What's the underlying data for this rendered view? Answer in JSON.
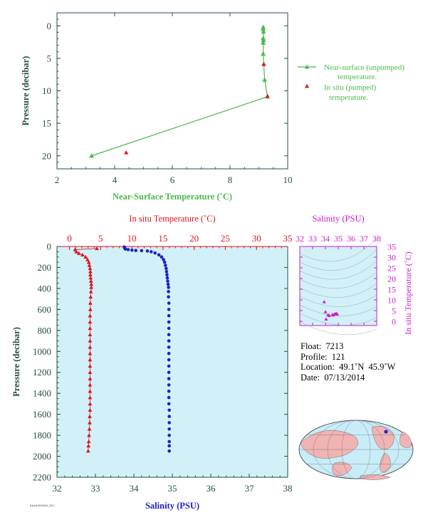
{
  "colors": {
    "green": "#4cb84c",
    "red": "#e0141e",
    "blue": "#1f1fc8",
    "magenta": "#c81ec8",
    "axis_dark": "#24503c",
    "plot_bg": "#d2f0f8",
    "land": "#f0b4b4",
    "ocean": "#c8ecf8"
  },
  "chart_data": [
    {
      "type": "scatter",
      "xlabel": "Near-Surface Temperature (˚C)",
      "ylabel": "Pressure (decibar)",
      "xlim": [
        2,
        10
      ],
      "ylim": [
        22,
        -2
      ],
      "xticks": [
        2,
        4,
        6,
        8,
        10
      ],
      "yticks": [
        0,
        5,
        10,
        15,
        20
      ],
      "legend_position": "right",
      "series": [
        {
          "name": "Near-surface (unpumped) temperature.",
          "marker": "triangle",
          "connected": true,
          "points": [
            [
              9.15,
              0.2
            ],
            [
              9.15,
              0.5
            ],
            [
              9.16,
              0.9
            ],
            [
              9.15,
              1.9
            ],
            [
              9.16,
              2.2
            ],
            [
              9.15,
              2.6
            ],
            [
              9.15,
              4.3
            ],
            [
              9.17,
              5.9
            ],
            [
              9.2,
              8.3
            ],
            [
              9.3,
              10.9
            ],
            [
              3.2,
              20.0
            ]
          ]
        },
        {
          "name": "In situ (pumped) temperature.",
          "marker": "triangle",
          "connected": false,
          "points": [
            [
              9.17,
              5.9
            ],
            [
              9.3,
              10.8
            ],
            [
              4.4,
              19.5
            ]
          ]
        }
      ]
    },
    {
      "type": "scatter",
      "title": "In situ Temperature (˚C)",
      "xlabel": "Salinity (PSU)",
      "ylabel": "Pressure (decibar)",
      "temp_lim": [
        -2,
        35
      ],
      "temp_ticks": [
        0,
        5,
        10,
        15,
        20,
        25,
        30,
        35
      ],
      "sal_lim": [
        32,
        38
      ],
      "sal_ticks": [
        32,
        33,
        34,
        35,
        36,
        37,
        38
      ],
      "ylim": [
        2200,
        0
      ],
      "yticks": [
        0,
        200,
        400,
        600,
        800,
        1000,
        1200,
        1400,
        1600,
        1800,
        2000,
        2200
      ],
      "series": [
        {
          "name": "In situ Temperature",
          "axis": "temperature",
          "marker": "triangle",
          "points": [
            [
              4.4,
              19.5
            ],
            [
              0.9,
              30
            ],
            [
              1.1,
              50
            ],
            [
              1.5,
              65
            ],
            [
              2.1,
              80
            ],
            [
              2.6,
              100
            ],
            [
              2.9,
              125
            ],
            [
              3.1,
              150
            ],
            [
              3.2,
              180
            ],
            [
              3.3,
              210
            ],
            [
              3.35,
              240
            ],
            [
              3.35,
              270
            ],
            [
              3.4,
              300
            ],
            [
              3.45,
              330
            ],
            [
              3.5,
              360
            ],
            [
              3.5,
              390
            ],
            [
              3.45,
              430
            ],
            [
              3.4,
              480
            ],
            [
              3.35,
              540
            ],
            [
              3.35,
              600
            ],
            [
              3.3,
              660
            ],
            [
              3.3,
              720
            ],
            [
              3.3,
              780
            ],
            [
              3.3,
              840
            ],
            [
              3.3,
              900
            ],
            [
              3.3,
              960
            ],
            [
              3.3,
              1020
            ],
            [
              3.3,
              1080
            ],
            [
              3.3,
              1140
            ],
            [
              3.3,
              1200
            ],
            [
              3.3,
              1260
            ],
            [
              3.3,
              1320
            ],
            [
              3.3,
              1380
            ],
            [
              3.3,
              1440
            ],
            [
              3.3,
              1500
            ],
            [
              3.3,
              1560
            ],
            [
              3.25,
              1620
            ],
            [
              3.25,
              1680
            ],
            [
              3.2,
              1740
            ],
            [
              3.15,
              1800
            ],
            [
              3.1,
              1860
            ],
            [
              3.05,
              1900
            ],
            [
              3.0,
              1950
            ]
          ]
        },
        {
          "name": "Salinity",
          "axis": "salinity",
          "marker": "circle",
          "points": [
            [
              33.75,
              5
            ],
            [
              33.76,
              15
            ],
            [
              33.78,
              25
            ],
            [
              33.85,
              30
            ],
            [
              33.95,
              35
            ],
            [
              34.05,
              38
            ],
            [
              34.2,
              40
            ],
            [
              34.35,
              43
            ],
            [
              34.45,
              50
            ],
            [
              34.55,
              62
            ],
            [
              34.65,
              80
            ],
            [
              34.72,
              100
            ],
            [
              34.77,
              125
            ],
            [
              34.8,
              150
            ],
            [
              34.82,
              180
            ],
            [
              34.84,
              210
            ],
            [
              34.85,
              240
            ],
            [
              34.86,
              270
            ],
            [
              34.87,
              300
            ],
            [
              34.88,
              330
            ],
            [
              34.89,
              360
            ],
            [
              34.9,
              390
            ],
            [
              34.9,
              430
            ],
            [
              34.9,
              480
            ],
            [
              34.91,
              540
            ],
            [
              34.91,
              600
            ],
            [
              34.91,
              660
            ],
            [
              34.91,
              720
            ],
            [
              34.91,
              780
            ],
            [
              34.91,
              840
            ],
            [
              34.91,
              900
            ],
            [
              34.91,
              960
            ],
            [
              34.91,
              1020
            ],
            [
              34.91,
              1080
            ],
            [
              34.91,
              1140
            ],
            [
              34.91,
              1200
            ],
            [
              34.91,
              1260
            ],
            [
              34.91,
              1320
            ],
            [
              34.91,
              1380
            ],
            [
              34.91,
              1440
            ],
            [
              34.91,
              1500
            ],
            [
              34.92,
              1560
            ],
            [
              34.92,
              1620
            ],
            [
              34.92,
              1680
            ],
            [
              34.92,
              1740
            ],
            [
              34.92,
              1800
            ],
            [
              34.92,
              1860
            ],
            [
              34.92,
              1900
            ],
            [
              34.92,
              1950
            ]
          ]
        }
      ]
    },
    {
      "type": "scatter",
      "title": "Salinity (PSU)",
      "ylabel": "In situ Temperature (˚C)",
      "xlim": [
        32,
        38
      ],
      "xticks": [
        32,
        33,
        34,
        35,
        36,
        37,
        38
      ],
      "ylim": [
        -2,
        35
      ],
      "yticks": [
        0,
        5,
        10,
        15,
        20,
        25,
        30,
        35
      ],
      "points": [
        [
          34.0,
          4.4
        ],
        [
          34.05,
          1.0
        ],
        [
          34.3,
          2.6
        ],
        [
          34.55,
          3.1
        ],
        [
          34.72,
          3.4
        ],
        [
          34.8,
          3.5
        ],
        [
          34.85,
          3.45
        ],
        [
          34.9,
          3.35
        ],
        [
          34.92,
          3.3
        ],
        [
          33.9,
          9.1
        ],
        [
          34.2,
          3.0
        ],
        [
          34.6,
          2.9
        ]
      ]
    }
  ],
  "info": {
    "float_label": "Float:",
    "float": "7213",
    "profile_label": "Profile:",
    "profile": "121",
    "location_label": "Location:",
    "location": "49.1˚N  45.9˚W",
    "date_label": "Date:",
    "date": "07/13/2014"
  },
  "credit": "RAAHIDSSMD_RS\u0000"
}
